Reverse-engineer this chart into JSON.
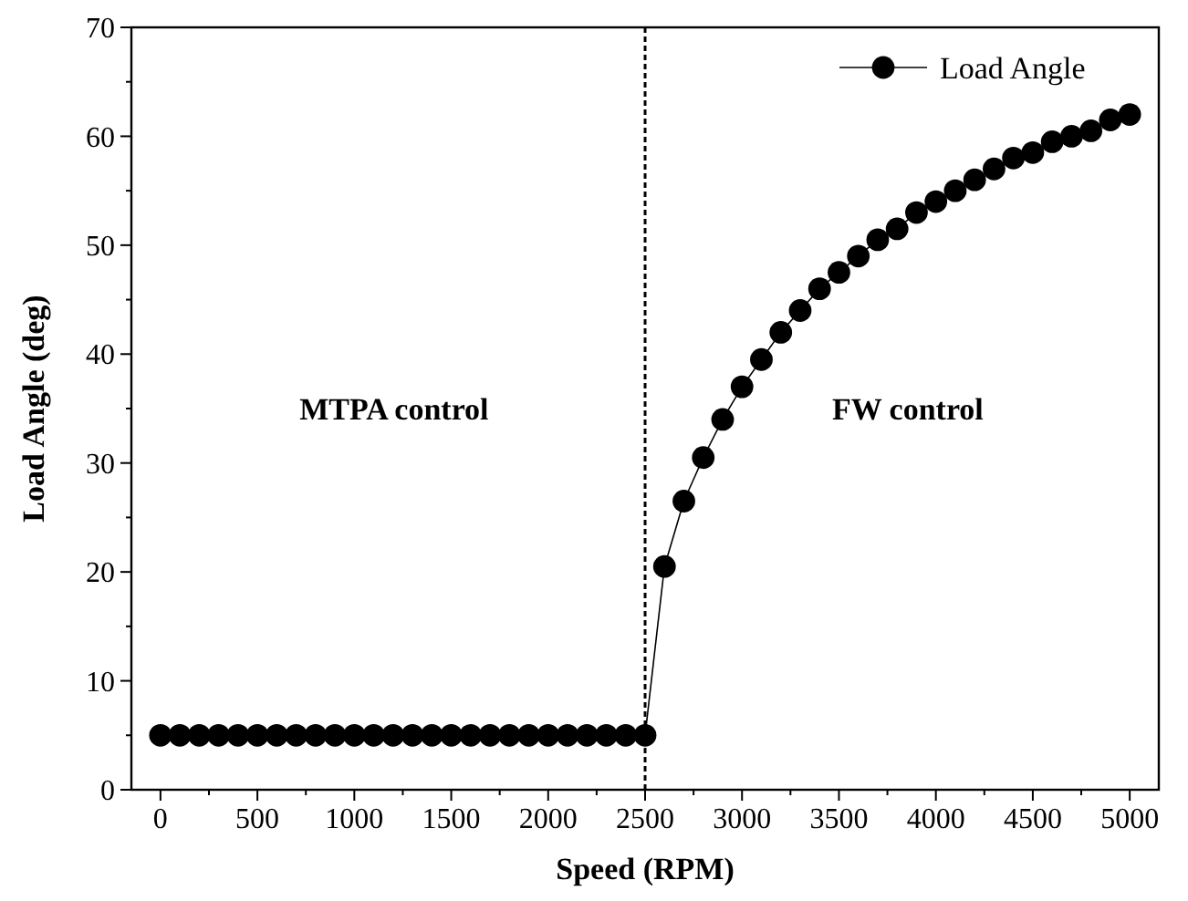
{
  "chart_data": {
    "type": "line",
    "xlabel": "Speed (RPM)",
    "ylabel": "Load Angle (deg)",
    "x": [
      0,
      100,
      200,
      300,
      400,
      500,
      600,
      700,
      800,
      900,
      1000,
      1100,
      1200,
      1300,
      1400,
      1500,
      1600,
      1700,
      1800,
      1900,
      2000,
      2100,
      2200,
      2300,
      2400,
      2500,
      2600,
      2700,
      2800,
      2900,
      3000,
      3100,
      3200,
      3300,
      3400,
      3500,
      3600,
      3700,
      3800,
      3900,
      4000,
      4100,
      4200,
      4300,
      4400,
      4500,
      4600,
      4700,
      4800,
      4900,
      5000
    ],
    "series": [
      {
        "name": "Load Angle",
        "color": "#000000",
        "values": [
          5,
          5,
          5,
          5,
          5,
          5,
          5,
          5,
          5,
          5,
          5,
          5,
          5,
          5,
          5,
          5,
          5,
          5,
          5,
          5,
          5,
          5,
          5,
          5,
          5,
          5,
          20.5,
          26.5,
          30.5,
          34,
          37,
          39.5,
          42,
          44,
          46,
          47.5,
          49,
          50.5,
          51.5,
          53,
          54,
          55,
          56,
          57,
          58,
          58.5,
          59.5,
          60,
          60.5,
          61.5,
          62
        ]
      }
    ],
    "xlim": [
      -150,
      5150
    ],
    "xticks": [
      0,
      500,
      1000,
      1500,
      2000,
      2500,
      3000,
      3500,
      4000,
      4500,
      5000
    ],
    "ylim": [
      0,
      70
    ],
    "yticks": [
      0,
      10,
      20,
      30,
      40,
      50,
      60,
      70
    ],
    "ref_lines": [
      {
        "axis": "x",
        "value": 2500,
        "color": "#000000",
        "line_style": "dashed"
      }
    ],
    "annotations": [
      "MTPA control",
      "FW control"
    ],
    "grid": false,
    "legend": "top right",
    "marker": "circle",
    "line_style": "solid"
  }
}
